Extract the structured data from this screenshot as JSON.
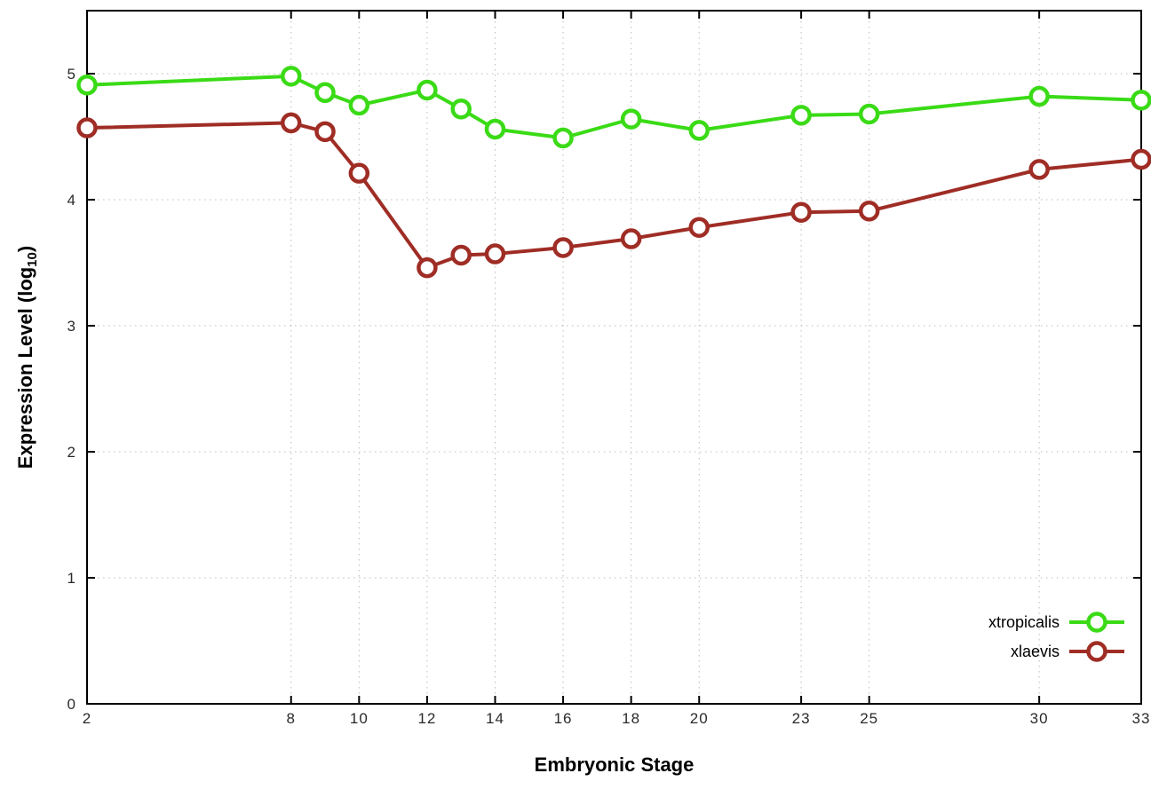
{
  "chart_data": {
    "type": "line",
    "title": "",
    "xlabel": "Embryonic Stage",
    "ylabel_parts": {
      "main": "Expression Level (log",
      "sub": "10",
      "close": ")"
    },
    "x": [
      2,
      8,
      9,
      10,
      12,
      13,
      14,
      16,
      18,
      20,
      23,
      25,
      30,
      33
    ],
    "xticks": [
      2,
      8,
      10,
      12,
      14,
      16,
      18,
      20,
      23,
      25,
      30,
      33
    ],
    "yticks": [
      0,
      1,
      2,
      3,
      4,
      5
    ],
    "xlim": [
      2,
      33
    ],
    "ylim": [
      0,
      5.5
    ],
    "grid": true,
    "legend_position": "inside-bottom-right",
    "series": [
      {
        "name": "xtropicalis",
        "color": "#3adb16",
        "values": [
          4.91,
          4.98,
          4.85,
          4.75,
          4.87,
          4.72,
          4.56,
          4.49,
          4.64,
          4.55,
          4.67,
          4.68,
          4.82,
          4.79
        ]
      },
      {
        "name": "xlaevis",
        "color": "#9f2d25",
        "values": [
          4.57,
          4.61,
          4.54,
          4.21,
          3.46,
          3.56,
          3.57,
          3.62,
          3.69,
          3.78,
          3.9,
          3.91,
          4.24,
          4.32
        ]
      }
    ],
    "colors": {
      "axis": "#000000",
      "grid": "#bcbcbc",
      "tick_text": "#2a2a2a",
      "marker_fill": "#ffffff"
    }
  }
}
